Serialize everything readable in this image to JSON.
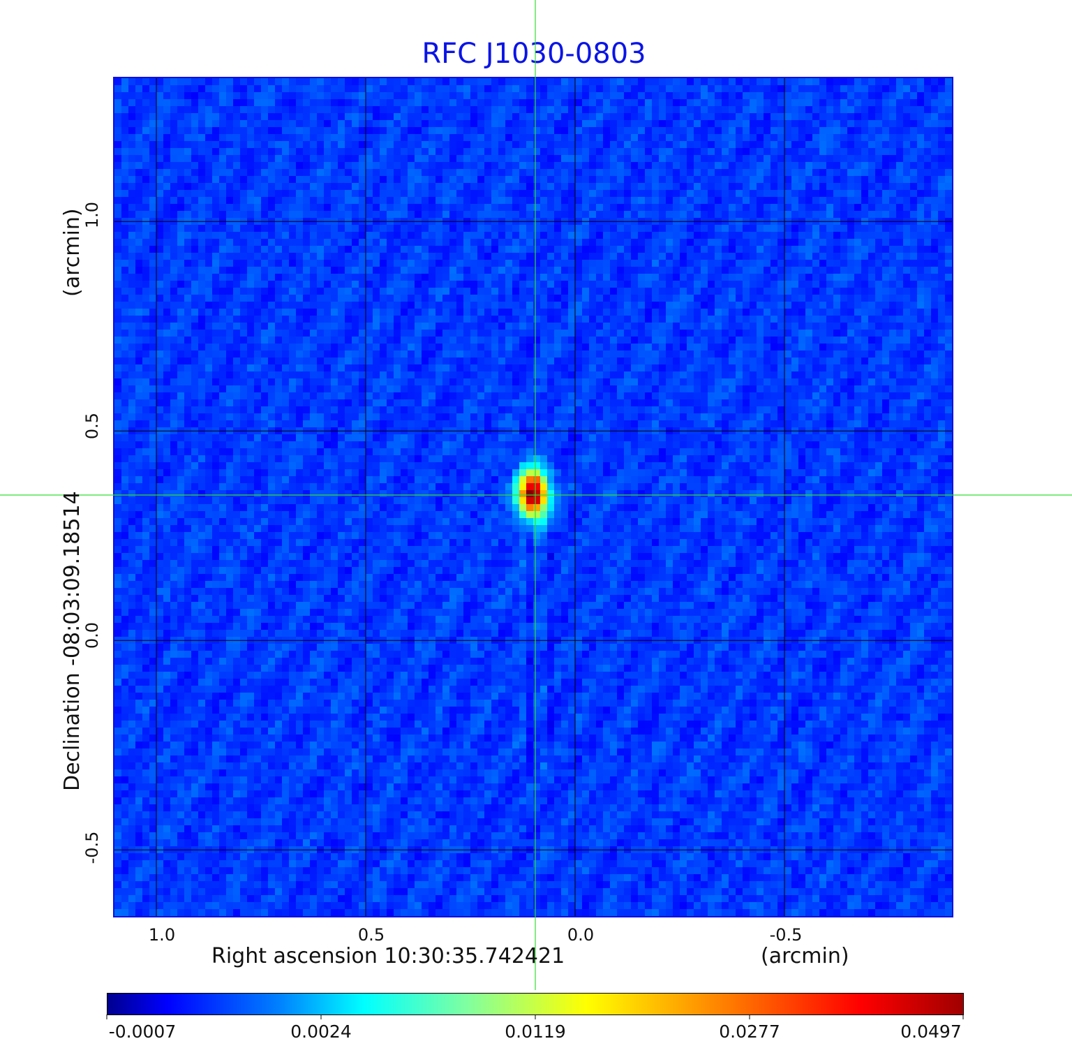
{
  "chart_data": {
    "type": "heatmap",
    "title": "RFC J1030-0803",
    "xlabel": "Right ascension  10:30:35.742421",
    "xunit": "(arcmin)",
    "ylabel": "Declination  -08:03:09.18514",
    "yunit": "(arcmin)",
    "xlim": [
      1.1,
      -0.9
    ],
    "ylim": [
      -0.658,
      1.342
    ],
    "xticks": [
      "1.0",
      "0.5",
      "0.0",
      "-0.5"
    ],
    "xtick_values": [
      1.0,
      0.5,
      0.0,
      -0.5
    ],
    "yticks": [
      "1.0",
      "0.5",
      "0.0",
      "-0.5"
    ],
    "ytick_values": [
      1.0,
      0.5,
      0.0,
      -0.5
    ],
    "grid": true,
    "colormap": "jet",
    "colorbar": {
      "ticks": [
        "-0.0007",
        "0.0024",
        "0.0119",
        "0.0277",
        "0.0497"
      ],
      "min": -0.0007,
      "max": 0.0497
    },
    "source": {
      "ra_offset": 0.1,
      "dec_offset": 0.35,
      "peak": 0.0497
    },
    "crosshair": {
      "ra_offset": 0.095,
      "dec_offset": 0.347,
      "color": "#33dd33"
    },
    "title_color": "#0a14e6"
  }
}
